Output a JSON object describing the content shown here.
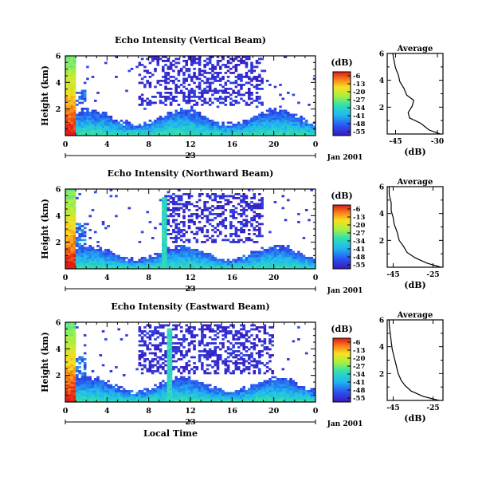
{
  "chart_data": [
    {
      "type": "heatmap",
      "title": "Echo Intensity (Vertical Beam)",
      "ylabel": "Height (km)",
      "xlim": [
        0,
        24
      ],
      "ylim": [
        0,
        6
      ],
      "x_ticks": [
        "0",
        "4",
        "8",
        "12",
        "16",
        "20",
        "0"
      ],
      "y_ticks": [
        "2",
        "4",
        "6"
      ],
      "date_ticks": [
        "23"
      ],
      "date_label": "Jan 2001",
      "colorbar": {
        "unit": "(dB)",
        "ticks": [
          "-6",
          "-13",
          "-20",
          "-27",
          "-34",
          "-41",
          "-48",
          "-55"
        ],
        "range": [
          -55,
          -6
        ]
      },
      "echo_top_km": 1.6,
      "cloud_top_km": 6.0,
      "cloud_start_h": 7.0,
      "cloud_end_h": 19.0,
      "surge_hours": [
        0.5
      ],
      "average": {
        "title": "Average",
        "xlabel": "(dB)",
        "x_ticks": [
          "-45",
          "-30"
        ],
        "xlim": [
          -48,
          -28
        ],
        "y_ticks": [
          "2",
          "4",
          "6"
        ],
        "ylim": [
          0,
          6
        ],
        "profile": [
          [
            -29,
            0.0
          ],
          [
            -33,
            0.3
          ],
          [
            -36,
            0.8
          ],
          [
            -40,
            1.2
          ],
          [
            -40.5,
            1.6
          ],
          [
            -39,
            2.1
          ],
          [
            -38.5,
            2.5
          ],
          [
            -41,
            2.9
          ],
          [
            -42,
            3.4
          ],
          [
            -43.5,
            3.9
          ],
          [
            -44,
            4.4
          ],
          [
            -45,
            4.9
          ],
          [
            -45.5,
            5.4
          ],
          [
            -46,
            6.0
          ]
        ]
      }
    },
    {
      "type": "heatmap",
      "title": "Echo Intensity (Northward Beam)",
      "ylabel": "Height (km)",
      "xlim": [
        0,
        24
      ],
      "ylim": [
        0,
        6
      ],
      "x_ticks": [
        "0",
        "4",
        "8",
        "12",
        "16",
        "20",
        "0"
      ],
      "y_ticks": [
        "2",
        "4",
        "6"
      ],
      "date_ticks": [
        "23"
      ],
      "date_label": "Jan 2001",
      "colorbar": {
        "unit": "(dB)",
        "ticks": [
          "-6",
          "-13",
          "-20",
          "-27",
          "-34",
          "-41",
          "-48",
          "-55"
        ],
        "range": [
          -55,
          -6
        ]
      },
      "echo_top_km": 1.4,
      "cloud_top_km": 5.7,
      "cloud_start_h": 9.5,
      "cloud_end_h": 19.0,
      "surge_hours": [
        0.5,
        9.5
      ],
      "average": {
        "title": "Average",
        "xlabel": "(dB)",
        "x_ticks": [
          "-45",
          "-25"
        ],
        "xlim": [
          -48,
          -20
        ],
        "y_ticks": [
          "2",
          "4",
          "6"
        ],
        "ylim": [
          0,
          6
        ],
        "profile": [
          [
            -21,
            0.0
          ],
          [
            -28,
            0.3
          ],
          [
            -34,
            0.7
          ],
          [
            -38,
            1.1
          ],
          [
            -40,
            1.6
          ],
          [
            -42,
            2.0
          ],
          [
            -43,
            2.6
          ],
          [
            -44.5,
            3.2
          ],
          [
            -45,
            3.7
          ],
          [
            -46,
            4.2
          ],
          [
            -46,
            4.8
          ],
          [
            -47,
            5.4
          ],
          [
            -47,
            6.0
          ]
        ]
      }
    },
    {
      "type": "heatmap",
      "title": "Echo Intensity (Eastward Beam)",
      "ylabel": "Height (km)",
      "xlabel": "Local Time",
      "xlim": [
        0,
        24
      ],
      "ylim": [
        0,
        6
      ],
      "x_ticks": [
        "0",
        "4",
        "8",
        "12",
        "16",
        "20",
        "0"
      ],
      "y_ticks": [
        "2",
        "4",
        "6"
      ],
      "date_ticks": [
        "23"
      ],
      "date_label": "Jan 2001",
      "colorbar": {
        "unit": "(dB)",
        "ticks": [
          "-6",
          "-13",
          "-20",
          "-27",
          "-34",
          "-41",
          "-48",
          "-55"
        ],
        "range": [
          -55,
          -6
        ]
      },
      "echo_top_km": 1.5,
      "cloud_top_km": 5.8,
      "cloud_start_h": 7.0,
      "cloud_end_h": 20.0,
      "surge_hours": [
        0.5,
        10.0
      ],
      "average": {
        "title": "Average",
        "xlabel": "(dB)",
        "x_ticks": [
          "-45",
          "-25"
        ],
        "xlim": [
          -48,
          -20
        ],
        "y_ticks": [
          "2",
          "4",
          "6"
        ],
        "ylim": [
          0,
          6
        ],
        "profile": [
          [
            -22,
            0.0
          ],
          [
            -30,
            0.3
          ],
          [
            -36,
            0.7
          ],
          [
            -39,
            1.1
          ],
          [
            -41,
            1.5
          ],
          [
            -42.5,
            2.0
          ],
          [
            -43.5,
            2.6
          ],
          [
            -44.5,
            3.2
          ],
          [
            -45.5,
            3.8
          ],
          [
            -46,
            4.4
          ],
          [
            -46.5,
            5.0
          ],
          [
            -47,
            5.6
          ],
          [
            -47,
            6.0
          ]
        ]
      }
    }
  ]
}
